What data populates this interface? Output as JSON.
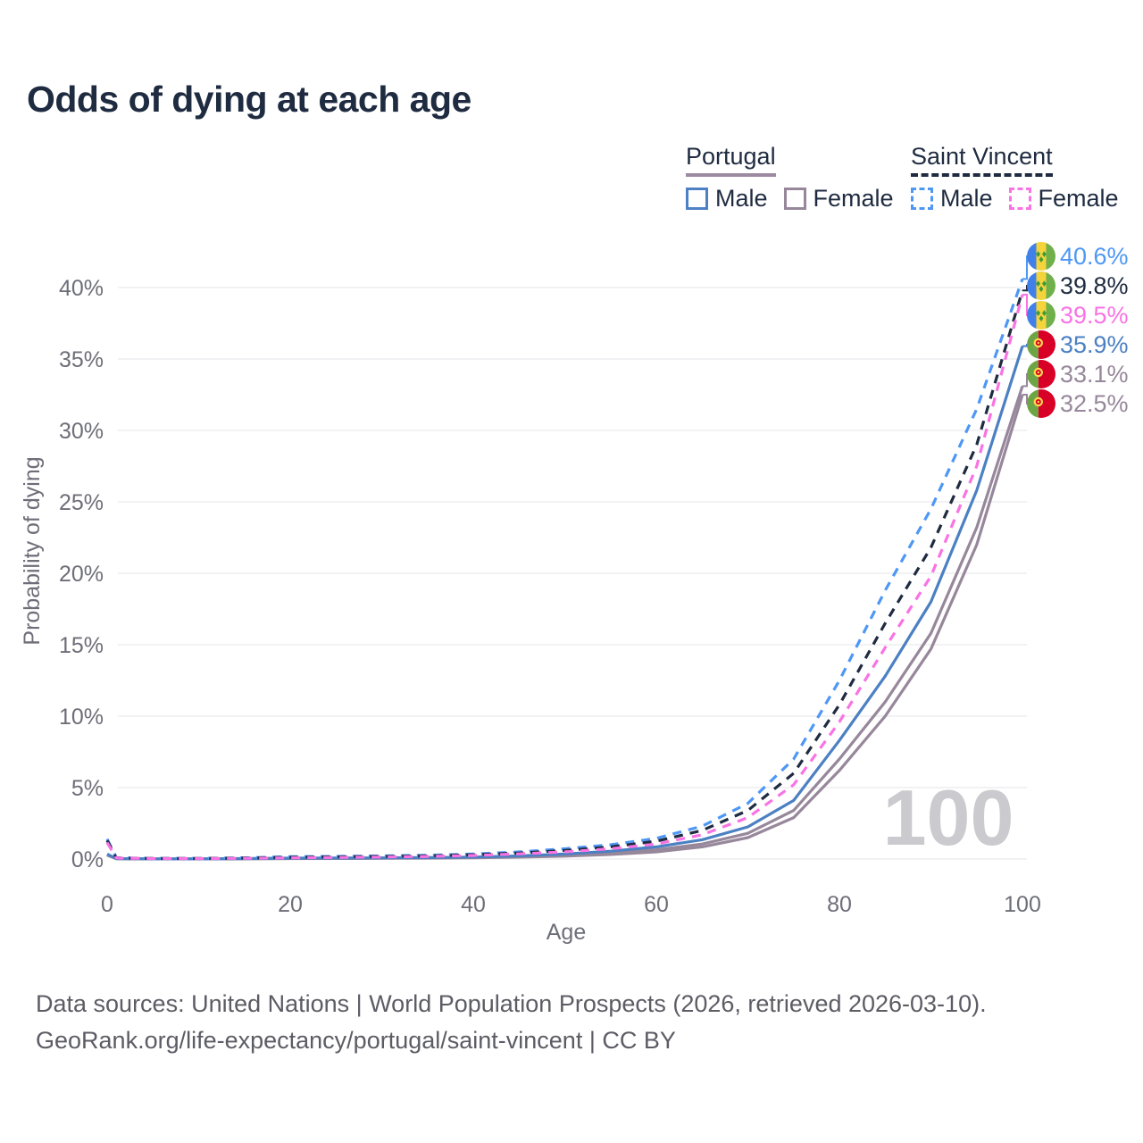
{
  "title": "Odds of dying at each age",
  "legend": {
    "groups": [
      {
        "id": "portugal",
        "name": "Portugal",
        "line_style": "solid",
        "underline_color": "#9B8AA0",
        "items": [
          {
            "label": "Male",
            "color": "#4E81C4",
            "style": "solid"
          },
          {
            "label": "Female",
            "color": "#97879B",
            "style": "solid"
          }
        ]
      },
      {
        "id": "saint-vincent",
        "name": "Saint Vincent",
        "line_style": "dashed",
        "underline_color": "#1F2B40",
        "items": [
          {
            "label": "Male",
            "color": "#4E97F5",
            "style": "dashed"
          },
          {
            "label": "Female",
            "color": "#F973E3",
            "style": "dashed"
          }
        ]
      }
    ]
  },
  "chart_data": {
    "type": "line",
    "title": "Odds of dying at each age",
    "xlabel": "Age",
    "ylabel": "Probability of dying",
    "x_ticks": [
      0,
      20,
      40,
      60,
      80,
      100
    ],
    "y_ticks_pct": [
      0,
      5,
      10,
      15,
      20,
      25,
      30,
      35,
      40
    ],
    "xlim": [
      0,
      100
    ],
    "ylim_pct": [
      0,
      42
    ],
    "grid": "horizontal",
    "watermark": "100",
    "series": [
      {
        "id": "portugal-both",
        "name": "Portugal — Both sexes",
        "country": "Portugal",
        "sex": "Both",
        "color": "#97879B",
        "dash": "solid",
        "flag": "pt",
        "end_label": "33.1%",
        "points": [
          [
            0,
            0.3
          ],
          [
            1,
            0.025
          ],
          [
            5,
            0.008
          ],
          [
            10,
            0.008
          ],
          [
            15,
            0.02
          ],
          [
            20,
            0.04
          ],
          [
            25,
            0.05
          ],
          [
            30,
            0.06
          ],
          [
            35,
            0.08
          ],
          [
            40,
            0.11
          ],
          [
            45,
            0.17
          ],
          [
            50,
            0.26
          ],
          [
            55,
            0.42
          ],
          [
            60,
            0.65
          ],
          [
            65,
            1.05
          ],
          [
            70,
            1.8
          ],
          [
            75,
            3.4
          ],
          [
            80,
            7.0
          ],
          [
            85,
            11.0
          ],
          [
            90,
            15.8
          ],
          [
            95,
            23.2
          ],
          [
            100,
            33.1
          ]
        ]
      },
      {
        "id": "portugal-female",
        "name": "Portugal — Female",
        "country": "Portugal",
        "sex": "Female",
        "color": "#97879B",
        "dash": "solid",
        "flag": "pt",
        "end_label": "32.5%",
        "points": [
          [
            0,
            0.27
          ],
          [
            1,
            0.02
          ],
          [
            5,
            0.007
          ],
          [
            10,
            0.007
          ],
          [
            15,
            0.015
          ],
          [
            20,
            0.03
          ],
          [
            25,
            0.04
          ],
          [
            30,
            0.05
          ],
          [
            35,
            0.06
          ],
          [
            40,
            0.09
          ],
          [
            45,
            0.13
          ],
          [
            50,
            0.2
          ],
          [
            55,
            0.32
          ],
          [
            60,
            0.5
          ],
          [
            65,
            0.85
          ],
          [
            70,
            1.5
          ],
          [
            75,
            2.9
          ],
          [
            80,
            6.2
          ],
          [
            85,
            10.0
          ],
          [
            90,
            14.7
          ],
          [
            95,
            22.0
          ],
          [
            100,
            32.5
          ]
        ]
      },
      {
        "id": "portugal-male",
        "name": "Portugal — Male",
        "country": "Portugal",
        "sex": "Male",
        "color": "#4B80C3",
        "dash": "solid",
        "flag": "pt",
        "end_label": "35.9%",
        "points": [
          [
            0,
            0.35
          ],
          [
            1,
            0.03
          ],
          [
            5,
            0.01
          ],
          [
            10,
            0.01
          ],
          [
            15,
            0.03
          ],
          [
            20,
            0.06
          ],
          [
            25,
            0.07
          ],
          [
            30,
            0.08
          ],
          [
            35,
            0.1
          ],
          [
            40,
            0.14
          ],
          [
            45,
            0.22
          ],
          [
            50,
            0.35
          ],
          [
            55,
            0.55
          ],
          [
            60,
            0.85
          ],
          [
            65,
            1.35
          ],
          [
            70,
            2.25
          ],
          [
            75,
            4.1
          ],
          [
            80,
            8.3
          ],
          [
            85,
            12.8
          ],
          [
            90,
            18.0
          ],
          [
            95,
            25.8
          ],
          [
            100,
            35.9
          ]
        ]
      },
      {
        "id": "saint-vincent-male",
        "name": "Saint Vincent — Male",
        "country": "Saint Vincent",
        "sex": "Male",
        "color": "#4E97F5",
        "dash": "dashed",
        "flag": "sv",
        "end_label": "40.6%",
        "points": [
          [
            0,
            1.4
          ],
          [
            1,
            0.09
          ],
          [
            5,
            0.04
          ],
          [
            10,
            0.04
          ],
          [
            15,
            0.09
          ],
          [
            20,
            0.16
          ],
          [
            25,
            0.19
          ],
          [
            30,
            0.22
          ],
          [
            35,
            0.27
          ],
          [
            40,
            0.35
          ],
          [
            45,
            0.5
          ],
          [
            50,
            0.72
          ],
          [
            55,
            1.0
          ],
          [
            60,
            1.45
          ],
          [
            65,
            2.3
          ],
          [
            70,
            3.9
          ],
          [
            75,
            7.0
          ],
          [
            80,
            12.5
          ],
          [
            85,
            18.8
          ],
          [
            90,
            24.5
          ],
          [
            95,
            31.5
          ],
          [
            100,
            40.6
          ]
        ]
      },
      {
        "id": "saint-vincent-both",
        "name": "Saint Vincent — Both sexes",
        "country": "Saint Vincent",
        "sex": "Both",
        "color": "#1F2B40",
        "dash": "dashed",
        "flag": "sv",
        "end_label": "39.8%",
        "points": [
          [
            0,
            1.3
          ],
          [
            1,
            0.08
          ],
          [
            5,
            0.035
          ],
          [
            10,
            0.035
          ],
          [
            15,
            0.07
          ],
          [
            20,
            0.12
          ],
          [
            25,
            0.15
          ],
          [
            30,
            0.18
          ],
          [
            35,
            0.22
          ],
          [
            40,
            0.3
          ],
          [
            45,
            0.42
          ],
          [
            50,
            0.6
          ],
          [
            55,
            0.85
          ],
          [
            60,
            1.25
          ],
          [
            65,
            2.0
          ],
          [
            70,
            3.4
          ],
          [
            75,
            6.0
          ],
          [
            80,
            10.8
          ],
          [
            85,
            16.5
          ],
          [
            90,
            21.8
          ],
          [
            95,
            29.0
          ],
          [
            100,
            39.8
          ]
        ]
      },
      {
        "id": "saint-vincent-female",
        "name": "Saint Vincent — Female",
        "country": "Saint Vincent",
        "sex": "Female",
        "color": "#F973E3",
        "dash": "dashed",
        "flag": "sv",
        "end_label": "39.5%",
        "points": [
          [
            0,
            1.15
          ],
          [
            1,
            0.07
          ],
          [
            5,
            0.03
          ],
          [
            10,
            0.03
          ],
          [
            15,
            0.05
          ],
          [
            20,
            0.08
          ],
          [
            25,
            0.11
          ],
          [
            30,
            0.14
          ],
          [
            35,
            0.18
          ],
          [
            40,
            0.25
          ],
          [
            45,
            0.36
          ],
          [
            50,
            0.5
          ],
          [
            55,
            0.72
          ],
          [
            60,
            1.05
          ],
          [
            65,
            1.7
          ],
          [
            70,
            2.9
          ],
          [
            75,
            5.2
          ],
          [
            80,
            9.6
          ],
          [
            85,
            14.8
          ],
          [
            90,
            19.8
          ],
          [
            95,
            27.5
          ],
          [
            100,
            39.5
          ]
        ]
      }
    ],
    "flag_colors": {
      "saint_vincent": {
        "blue": "#4080E8",
        "yellow": "#F5D33D",
        "green": "#6FB04A",
        "diamond": "#3D9C35"
      },
      "portugal": {
        "green": "#6DA544",
        "red": "#D80027",
        "emblem_yellow": "#FFD84D"
      }
    }
  },
  "footer": {
    "line1": "Data sources: United Nations | World Population Prospects (2026, retrieved 2026-03-10).",
    "line2": "GeoRank.org/life-expectancy/portugal/saint-vincent | CC BY"
  }
}
